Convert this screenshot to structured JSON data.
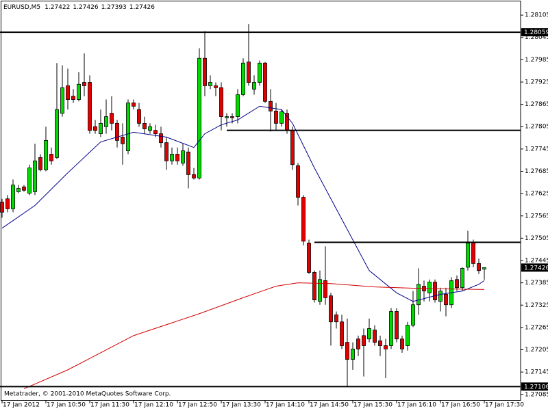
{
  "symbol": "EURUSD,M5",
  "copyright": "Metatrader, © 2001-2010 MetaQuotes Software Corp.",
  "chart_data": {
    "type": "candlestick",
    "categories": [
      "17 Jan 2012",
      null,
      null,
      null,
      null,
      null,
      null,
      null,
      "17 Jan 10:50",
      null,
      null,
      null,
      null,
      null,
      null,
      null,
      "17 Jan 11:30",
      null,
      null,
      null,
      null,
      null,
      null,
      null,
      "17 Jan 12:10",
      null,
      null,
      null,
      null,
      null,
      null,
      null,
      "17 Jan 12:50",
      null,
      null,
      null,
      null,
      null,
      null,
      null,
      "17 Jan 13:30",
      null,
      null,
      null,
      null,
      null,
      null,
      null,
      "17 Jan 14:10",
      null,
      null,
      null,
      null,
      null,
      null,
      null,
      "17 Jan 14:50",
      null,
      null,
      null,
      null,
      null,
      null,
      null,
      "17 Jan 15:30",
      null,
      null,
      null,
      null,
      null,
      null,
      null,
      "17 Jan 16:10",
      null,
      null,
      null,
      null,
      null,
      null,
      null,
      "17 Jan 16:50",
      null,
      null,
      null,
      null,
      null,
      null,
      null,
      "17 Jan 17:30"
    ],
    "open": [
      1.27602,
      1.27611,
      1.27584,
      1.2763,
      1.27643,
      1.27626,
      1.2763,
      1.27722,
      1.27689,
      1.27731,
      1.27722,
      1.27841,
      1.27915,
      1.27887,
      1.27878,
      1.27924,
      1.27924,
      1.27805,
      1.27786,
      1.27805,
      1.27841,
      1.27814,
      1.27777,
      1.2774,
      1.27869,
      1.27851,
      1.27814,
      1.27795,
      1.27795,
      1.27786,
      1.27762,
      1.27713,
      1.27731,
      1.27707,
      1.27737,
      1.27676,
      1.27667,
      1.27989,
      1.27915,
      1.27915,
      1.2791,
      1.27829,
      1.27832,
      1.27832,
      1.27891,
      1.27979,
      1.27906,
      1.27924,
      1.27976,
      1.27873,
      1.27847,
      1.27814,
      1.27841,
      1.27795,
      1.277,
      1.27615,
      1.27492,
      1.27413,
      1.27335,
      1.27391,
      1.2735,
      1.27299,
      1.2728,
      1.27225,
      1.27179,
      1.27234,
      1.27243,
      1.27234,
      1.27258,
      1.27229,
      1.27216,
      1.27216,
      1.27308,
      1.27234,
      1.27216,
      1.27271,
      1.27326,
      1.27376,
      1.27358,
      1.27387,
      1.27335,
      1.27354,
      1.27326,
      1.27394,
      1.27372,
      1.27427,
      1.27492,
      1.27437,
      1.27422
    ],
    "high": [
      1.27611,
      1.27621,
      1.27663,
      1.27648,
      1.27648,
      1.27703,
      1.27759,
      1.27731,
      1.27805,
      1.27749,
      1.27976,
      1.2797,
      1.27961,
      1.27906,
      1.27952,
      1.28002,
      1.27943,
      1.27823,
      1.27851,
      1.27878,
      1.27887,
      1.27823,
      1.27814,
      1.27878,
      1.27878,
      1.27869,
      1.27832,
      1.27814,
      1.2781,
      1.27805,
      1.27777,
      1.27749,
      1.27749,
      1.27759,
      1.27749,
      1.27694,
      1.28016,
      1.28062,
      1.27943,
      1.27924,
      1.27924,
      1.27841,
      1.27841,
      1.27906,
      1.27989,
      1.28081,
      1.27943,
      1.27983,
      1.27979,
      1.27906,
      1.27869,
      1.27851,
      1.27851,
      1.27805,
      1.27707,
      1.27621,
      1.27501,
      1.27418,
      1.27418,
      1.27483,
      1.27358,
      1.27308,
      1.27299,
      1.27289,
      1.27225,
      1.27243,
      1.27262,
      1.27289,
      1.27271,
      1.27243,
      1.27234,
      1.27317,
      1.27317,
      1.27243,
      1.2728,
      1.27363,
      1.27424,
      1.27391,
      1.27394,
      1.27394,
      1.27372,
      1.27372,
      1.274,
      1.27405,
      1.27427,
      1.27525,
      1.27501,
      1.2745,
      1.27426
    ],
    "low": [
      1.2756,
      1.27575,
      1.27575,
      1.27626,
      1.2763,
      1.27621,
      1.27621,
      1.27685,
      1.27685,
      1.27703,
      1.27718,
      1.27832,
      1.27851,
      1.27869,
      1.27873,
      1.27887,
      1.27786,
      1.27786,
      1.27777,
      1.27786,
      1.27795,
      1.27749,
      1.27703,
      1.27731,
      1.27851,
      1.27805,
      1.27786,
      1.27786,
      1.27777,
      1.27749,
      1.27689,
      1.27703,
      1.27703,
      1.277,
      1.27639,
      1.27663,
      1.27663,
      1.27887,
      1.27906,
      1.27887,
      1.27795,
      1.27805,
      1.27814,
      1.27814,
      1.27887,
      1.27915,
      1.27891,
      1.27915,
      1.27869,
      1.27792,
      1.27795,
      1.27805,
      1.27786,
      1.27689,
      1.27593,
      1.27486,
      1.27409,
      1.27332,
      1.27326,
      1.27326,
      1.27216,
      1.27262,
      1.27207,
      1.27105,
      1.27151,
      1.27188,
      1.27133,
      1.27225,
      1.27216,
      1.27188,
      1.27129,
      1.27207,
      1.27225,
      1.27197,
      1.27203,
      1.27266,
      1.27299,
      1.27335,
      1.27335,
      1.27332,
      1.27308,
      1.27295,
      1.27317,
      1.27363,
      1.27363,
      1.27418,
      1.27427,
      1.27409,
      1.27393
    ],
    "close": [
      1.27575,
      1.27584,
      1.27648,
      1.27639,
      1.27634,
      1.27694,
      1.27713,
      1.27689,
      1.27768,
      1.27713,
      1.27851,
      1.2791,
      1.27878,
      1.27878,
      1.27919,
      1.27915,
      1.27795,
      1.27795,
      1.27814,
      1.27832,
      1.27814,
      1.27768,
      1.27759,
      1.27869,
      1.2786,
      1.27814,
      1.27799,
      1.27805,
      1.27786,
      1.27762,
      1.27713,
      1.27731,
      1.27713,
      1.2774,
      1.27676,
      1.27667,
      1.27989,
      1.27915,
      1.27924,
      1.2791,
      1.27832,
      1.27832,
      1.27829,
      1.27891,
      1.27976,
      1.27924,
      1.27924,
      1.27976,
      1.27873,
      1.27847,
      1.27814,
      1.27845,
      1.27795,
      1.27703,
      1.27615,
      1.27497,
      1.27413,
      1.27339,
      1.27394,
      1.27345,
      1.2728,
      1.2728,
      1.27216,
      1.27179,
      1.27207,
      1.27207,
      1.27216,
      1.27262,
      1.27225,
      1.27216,
      1.27207,
      1.27308,
      1.27234,
      1.27207,
      1.27271,
      1.27326,
      1.27381,
      1.27363,
      1.27387,
      1.27339,
      1.27363,
      1.27326,
      1.27391,
      1.27372,
      1.27424,
      1.27492,
      1.27437,
      1.27418,
      1.27426
    ],
    "up_color": "#00d800",
    "down_color": "#e00000",
    "xlim": [
      -0.375,
      94.625
    ],
    "ylim": [
      1.27068,
      1.28142
    ],
    "yticks": [
      1.28105,
      1.28045,
      1.27985,
      1.27925,
      1.27865,
      1.27805,
      1.27745,
      1.27685,
      1.27625,
      1.27565,
      1.27505,
      1.27445,
      1.27385,
      1.27325,
      1.27265,
      1.27205,
      1.27145,
      1.27085
    ],
    "lines": [
      {
        "color": "#00008b",
        "x": [
          0,
          6,
          12,
          18,
          24,
          30,
          35,
          37,
          40,
          43,
          47,
          51,
          53,
          57,
          62,
          67,
          72,
          75,
          80,
          84,
          87,
          88
        ],
        "values": [
          1.27532,
          1.27593,
          1.27681,
          1.27764,
          1.2779,
          1.27777,
          1.27749,
          1.27786,
          1.2781,
          1.27823,
          1.2786,
          1.27851,
          1.27814,
          1.27694,
          1.27556,
          1.27418,
          1.27358,
          1.27335,
          1.27354,
          1.27363,
          1.27381,
          1.27391
        ]
      },
      {
        "color": "#d00000",
        "x": [
          4,
          12,
          24,
          36,
          44,
          50,
          54,
          60,
          68,
          76,
          88
        ],
        "values": [
          1.271,
          1.27151,
          1.27243,
          1.27302,
          1.27345,
          1.27376,
          1.27385,
          1.27383,
          1.27374,
          1.2737,
          1.27367
        ]
      }
    ],
    "levels": [
      {
        "value": 1.28059,
        "boxed": true
      },
      {
        "value": 1.27795,
        "x_start": 41
      },
      {
        "value": 1.27494,
        "x_start": 57
      },
      {
        "value": 1.27106,
        "boxed": true
      }
    ]
  }
}
